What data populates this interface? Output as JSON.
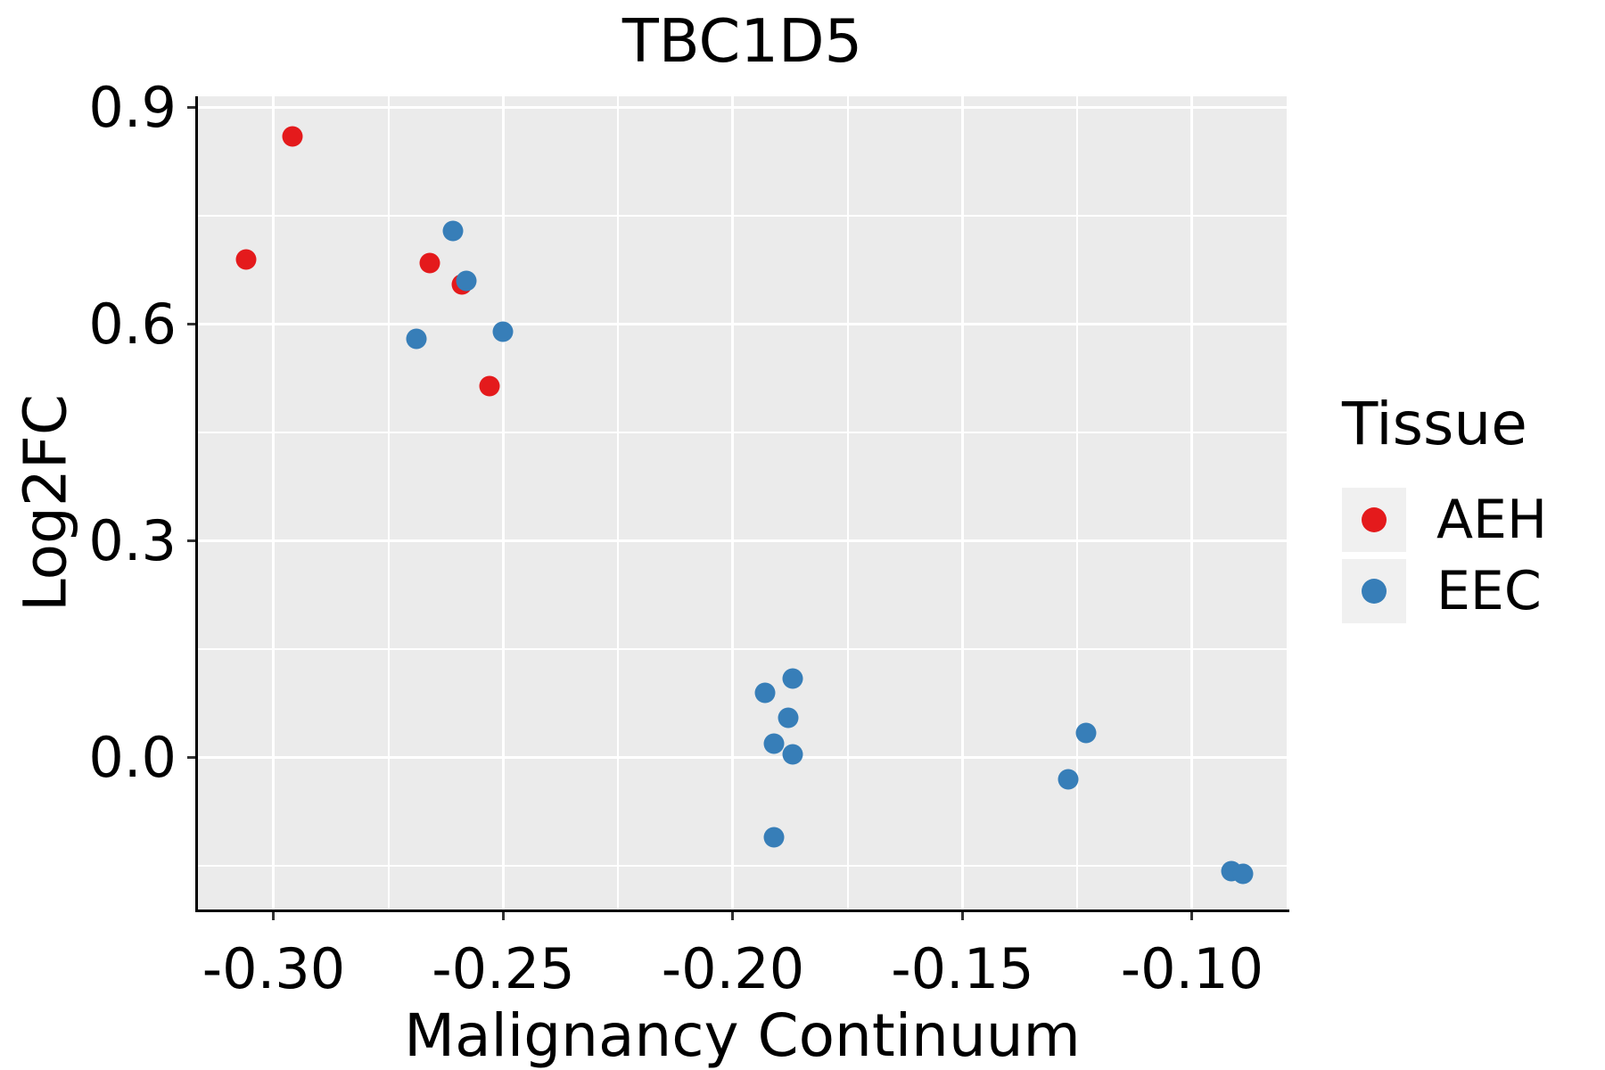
{
  "figure": {
    "title": "TBC1D5"
  },
  "chart_data": {
    "type": "scatter",
    "title": "TBC1D5",
    "xlabel": "Malignancy Continuum",
    "ylabel": "Log2FC",
    "x_domain": [
      -0.3165,
      -0.0794
    ],
    "y_domain": [
      -0.21,
      0.916
    ],
    "x_ticks": {
      "values": [
        -0.3,
        -0.25,
        -0.2,
        -0.15,
        -0.1
      ],
      "labels": [
        "-0.30",
        "-0.25",
        "-0.20",
        "-0.15",
        "-0.10"
      ],
      "minor": [
        -0.275,
        -0.225,
        -0.175,
        -0.125
      ]
    },
    "y_ticks": {
      "values": [
        0.0,
        0.3,
        0.6,
        0.9
      ],
      "labels": [
        "0.0",
        "0.3",
        "0.6",
        "0.9"
      ],
      "minor": [
        -0.15,
        0.15,
        0.45,
        0.75
      ]
    },
    "grid": true,
    "legend": {
      "title": "Tissue",
      "position": "right"
    },
    "series": [
      {
        "name": "AEH",
        "color": "#E41A1C",
        "points": [
          [
            -0.296,
            0.86
          ],
          [
            -0.306,
            0.69
          ],
          [
            -0.266,
            0.685
          ],
          [
            -0.259,
            0.655
          ],
          [
            -0.253,
            0.515
          ]
        ]
      },
      {
        "name": "EEC",
        "color": "#377EB8",
        "points": [
          [
            -0.261,
            0.73
          ],
          [
            -0.258,
            0.66
          ],
          [
            -0.269,
            0.58
          ],
          [
            -0.25,
            0.59
          ],
          [
            -0.187,
            0.11
          ],
          [
            -0.193,
            0.09
          ],
          [
            -0.188,
            0.055
          ],
          [
            -0.191,
            0.02
          ],
          [
            -0.187,
            0.005
          ],
          [
            -0.191,
            -0.11
          ],
          [
            -0.123,
            0.035
          ],
          [
            -0.127,
            -0.03
          ],
          [
            -0.0915,
            -0.157
          ],
          [
            -0.089,
            -0.16
          ]
        ]
      }
    ]
  },
  "colors": {
    "panel_bg": "#EBEBEB",
    "grid": "#FFFFFF",
    "axis_line": "#000000",
    "tick_mark": "#333333",
    "text": "#000000",
    "legend_key_bg": "#F0F0F0"
  }
}
